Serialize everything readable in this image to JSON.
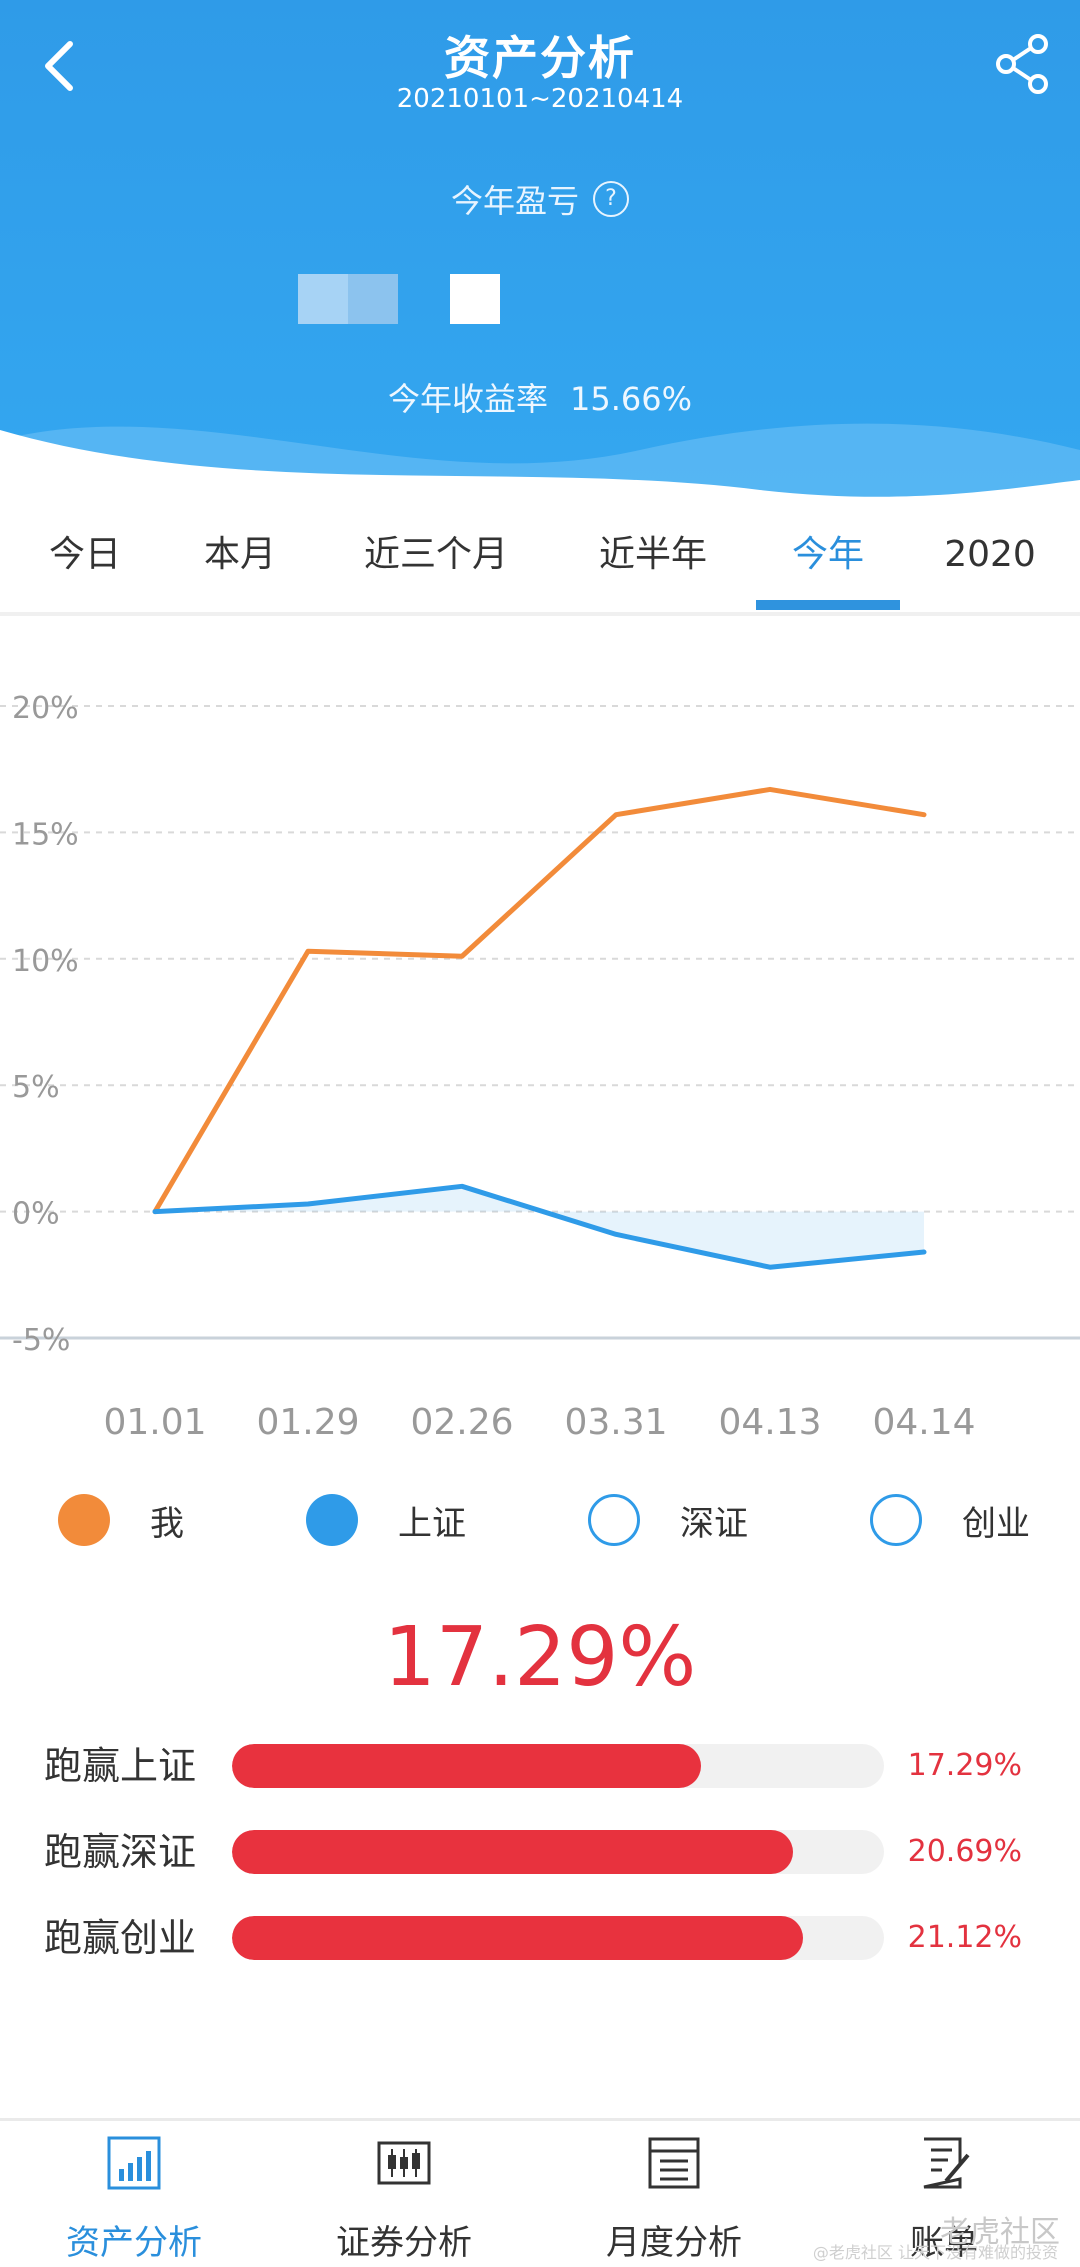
{
  "header": {
    "title": "资产分析",
    "date_range": "20210101~20210414",
    "pnl_label": "今年盈亏",
    "help_icon": "?",
    "return_label": "今年收益率",
    "return_value": "15.66%"
  },
  "tabs": [
    {
      "label": "今日",
      "active": false
    },
    {
      "label": "本月",
      "active": false
    },
    {
      "label": "近三个月",
      "active": false
    },
    {
      "label": "近半年",
      "active": false
    },
    {
      "label": "今年",
      "active": true
    },
    {
      "label": "2020",
      "active": false
    }
  ],
  "colors": {
    "me": "#f28b3a",
    "shanghai": "#2f9be8",
    "accent_red": "#e3323f",
    "active_blue": "#2a8fdc"
  },
  "chart_data": {
    "type": "line",
    "categories": [
      "01.01",
      "01.29",
      "02.26",
      "03.31",
      "04.13",
      "04.14"
    ],
    "y_ticks": [
      "20%",
      "15%",
      "10%",
      "5%",
      "0%",
      "-5%"
    ],
    "ylim": [
      -5,
      20
    ],
    "grid": true,
    "series": [
      {
        "name": "我",
        "values": [
          0.0,
          10.3,
          10.1,
          15.7,
          16.7,
          15.7
        ]
      },
      {
        "name": "上证",
        "values": [
          0.0,
          0.3,
          1.0,
          -0.9,
          -2.2,
          -1.6
        ]
      }
    ]
  },
  "legend": [
    {
      "label": "我",
      "icon": "orange-filled-dot"
    },
    {
      "label": "上证",
      "icon": "blue-filled-dot"
    },
    {
      "label": "深证",
      "icon": "blue-ring"
    },
    {
      "label": "创业",
      "icon": "blue-ring"
    }
  ],
  "summary": {
    "big_percent": "17.29%",
    "rows": [
      {
        "label": "跑赢上证",
        "value": "17.29%",
        "fill": 0.72
      },
      {
        "label": "跑赢深证",
        "value": "20.69%",
        "fill": 0.86
      },
      {
        "label": "跑赢创业",
        "value": "21.12%",
        "fill": 0.875
      }
    ]
  },
  "bottom_nav": [
    {
      "label": "资产分析",
      "icon": "bar-chart-icon",
      "active": true
    },
    {
      "label": "证券分析",
      "icon": "candlestick-icon",
      "active": false
    },
    {
      "label": "月度分析",
      "icon": "calendar-icon",
      "active": false
    },
    {
      "label": "账单",
      "icon": "bill-edit-icon",
      "active": false
    }
  ],
  "watermark": "老虎社区",
  "watermark_sub": "@老虎社区 让天下没有难做的投资"
}
